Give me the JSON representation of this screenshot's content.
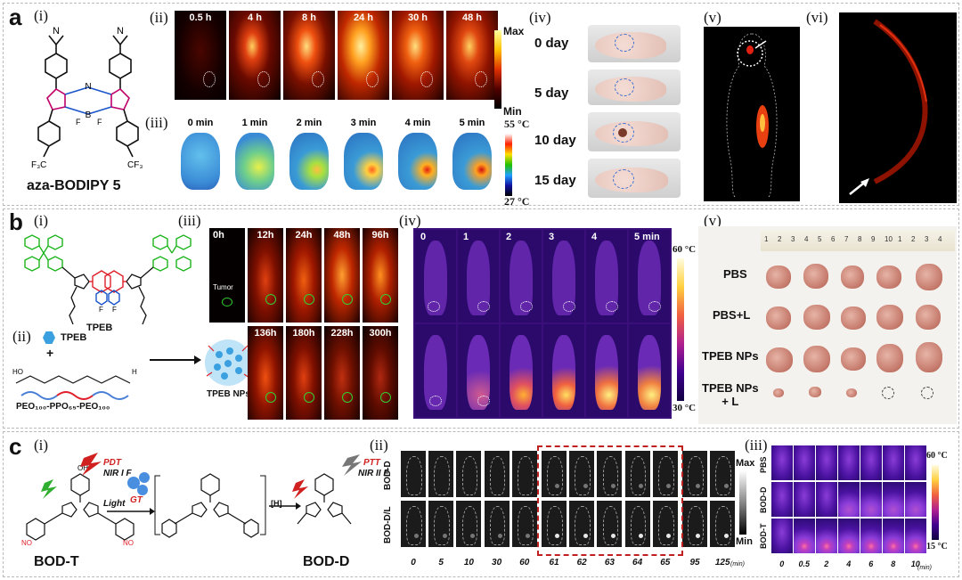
{
  "panel_a": {
    "label": "a",
    "i": {
      "sub": "(i)",
      "compound": "aza-BODIPY 5"
    },
    "ii": {
      "sub": "(ii)",
      "times": [
        "0.5 h",
        "4 h",
        "8 h",
        "24 h",
        "30 h",
        "48 h"
      ],
      "cb_max": "Max",
      "cb_min": "Min"
    },
    "iii": {
      "sub": "(iii)",
      "times": [
        "0 min",
        "1 min",
        "2 min",
        "3 min",
        "4 min",
        "5 min"
      ],
      "cb_max": "55 °C",
      "cb_min": "27 °C"
    },
    "iv": {
      "sub": "(iv)",
      "days": [
        "0 day",
        "5 day",
        "10 day",
        "15 day"
      ]
    },
    "v": {
      "sub": "(v)"
    },
    "vi": {
      "sub": "(vi)"
    }
  },
  "panel_b": {
    "label": "b",
    "i": {
      "sub": "(i)",
      "compound": "TPEB"
    },
    "ii": {
      "sub": "(ii)",
      "tpeb": "TPEB",
      "plus": "+",
      "polymer": "PEO₁₀₀-PPO₆₅-PEO₁₀₀",
      "nps": "TPEB NPs"
    },
    "iii": {
      "sub": "(iii)",
      "times_top": [
        "0h",
        "12h",
        "24h",
        "48h",
        "96h"
      ],
      "times_bottom": [
        "136h",
        "180h",
        "228h",
        "300h"
      ],
      "tumor": "Tumor"
    },
    "iv": {
      "sub": "(iv)",
      "times": [
        "0",
        "1",
        "2",
        "3",
        "4",
        "5 min"
      ],
      "cb_max": "60 °C",
      "cb_min": "30 °C"
    },
    "v": {
      "sub": "(v)",
      "groups": [
        "PBS",
        "PBS+L",
        "TPEB NPs",
        "TPEB NPs\n+ L"
      ],
      "ruler": [
        "1",
        "2",
        "3",
        "4",
        "5",
        "6",
        "7",
        "8",
        "9",
        "10",
        "1",
        "2",
        "3",
        "4"
      ]
    }
  },
  "panel_c": {
    "label": "c",
    "i": {
      "sub": "(i)",
      "pdt": "PDT",
      "nir1": "NIR I F",
      "light": "Light",
      "gt": "GT",
      "h": "[H]",
      "ptt": "PTT",
      "nir2": "NIR II F",
      "bodt": "BOD-T",
      "bodd": "BOD-D"
    },
    "ii": {
      "sub": "(ii)",
      "rows": [
        "BOD-D",
        "BOD-D/L"
      ],
      "times": [
        "0",
        "5",
        "10",
        "30",
        "60",
        "61",
        "62",
        "63",
        "64",
        "65",
        "95",
        "125"
      ],
      "unit": "(min)",
      "cb_max": "Max",
      "cb_min": "Min"
    },
    "iii": {
      "sub": "(iii)",
      "rows": [
        "PBS",
        "BOD-D",
        "BOD-T"
      ],
      "times": [
        "0",
        "0.5",
        "2",
        "4",
        "6",
        "8",
        "10"
      ],
      "unit": "(min)",
      "cb_max": "60 °C",
      "cb_min": "15 °C"
    }
  }
}
